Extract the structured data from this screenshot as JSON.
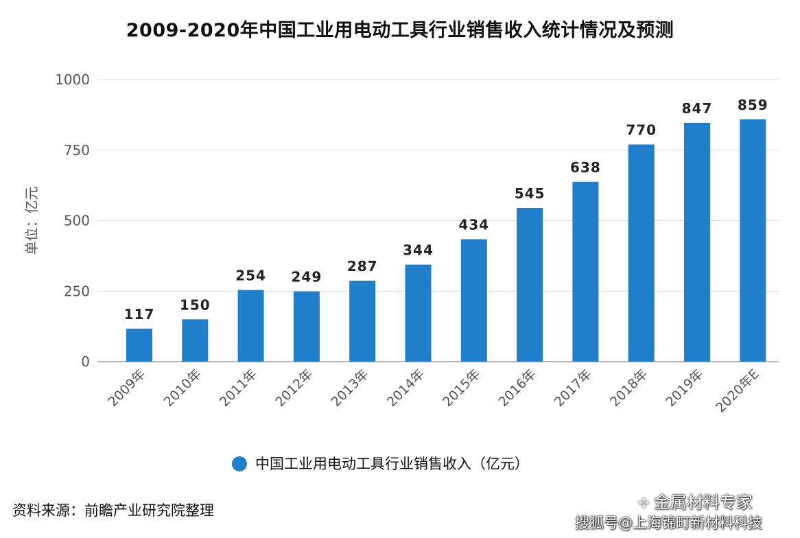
{
  "chart_data": {
    "type": "bar",
    "title": "2009-2020年中国工业用电动工具行业销售收入统计情况及预测",
    "ylabel": "单位：亿元",
    "ylim": [
      0,
      1000
    ],
    "yticks": [
      0,
      250,
      500,
      750,
      1000
    ],
    "grid": true,
    "legend_position": "bottom-center",
    "categories": [
      "2009年",
      "2010年",
      "2011年",
      "2012年",
      "2013年",
      "2014年",
      "2015年",
      "2016年",
      "2017年",
      "2018年",
      "2019年",
      "2020年E"
    ],
    "series": [
      {
        "name": "中国工业用电动工具行业销售收入（亿元）",
        "color": "#1f7fcb",
        "values": [
          117,
          150,
          254,
          249,
          287,
          344,
          434,
          545,
          638,
          770,
          847,
          859
        ]
      }
    ]
  },
  "footer": {
    "source": "资料来源：前瞻产业研究院整理",
    "watermark_line1": "金属材料专家",
    "watermark_line2": "搜狐号@上海锦町新材料科技"
  }
}
